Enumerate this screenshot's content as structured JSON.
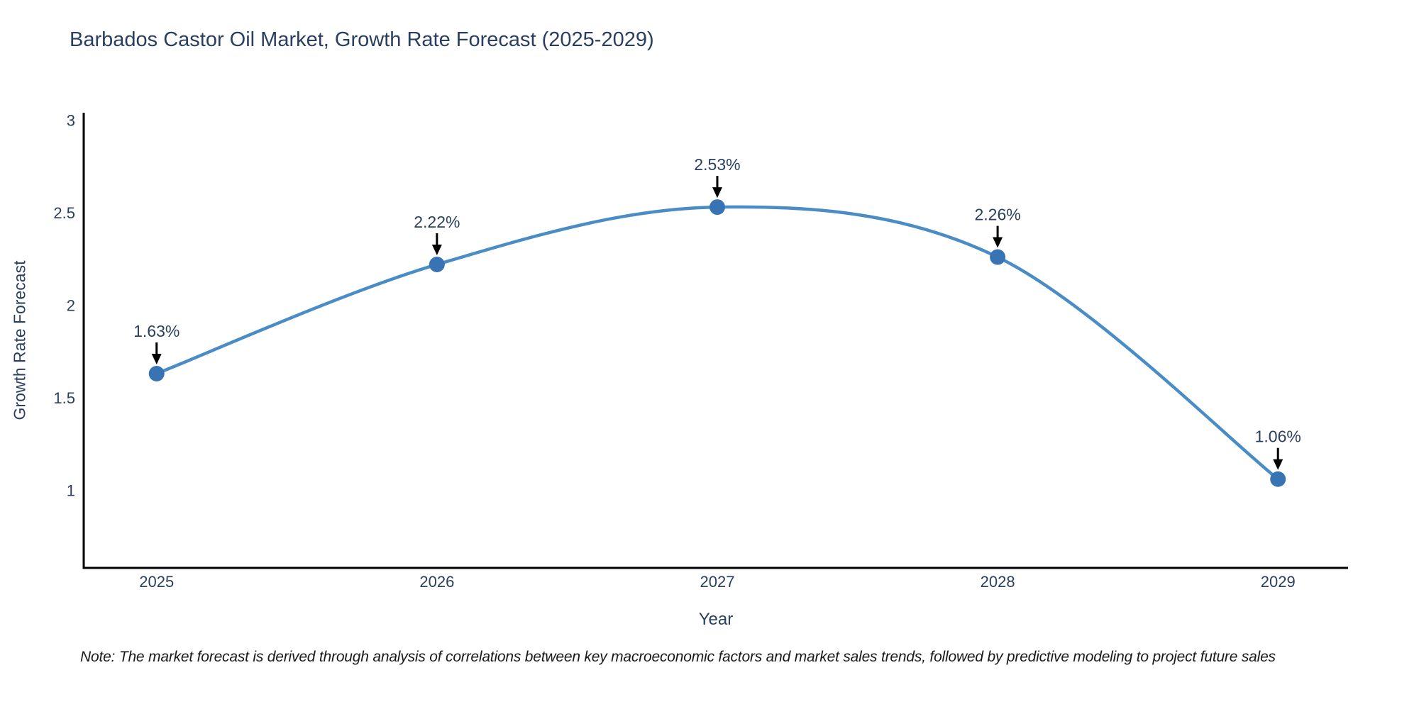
{
  "title": "Barbados Castor Oil Market, Growth Rate Forecast (2025-2029)",
  "note": "Note: The market forecast is derived through analysis of correlations between key macroeconomic factors and market sales trends, followed by predictive modeling to project future sales",
  "chart_data": {
    "type": "line",
    "title": "Barbados Castor Oil Market, Growth Rate Forecast (2025-2029)",
    "xlabel": "Year",
    "ylabel": "Growth Rate Forecast",
    "x": [
      2025,
      2026,
      2027,
      2028,
      2029
    ],
    "series": [
      {
        "name": "Growth Rate Forecast",
        "values": [
          1.63,
          2.22,
          2.53,
          2.26,
          1.06
        ]
      }
    ],
    "point_labels": [
      "1.63%",
      "2.22%",
      "2.53%",
      "2.26%",
      "1.06%"
    ],
    "xticks": [
      2025,
      2026,
      2027,
      2028,
      2029
    ],
    "xtick_labels": [
      "2025",
      "2026",
      "2027",
      "2028",
      "2029"
    ],
    "yticks": [
      1,
      1.5,
      2,
      2.5,
      3
    ],
    "ytick_labels": [
      "1",
      "1.5",
      "2",
      "2.5",
      "3"
    ],
    "xlim": [
      2024.74,
      2029.25
    ],
    "ylim": [
      0.58,
      3.04
    ],
    "grid": false,
    "legend": "none",
    "line_shape": "spline",
    "marker": "circle",
    "annotation_style": "down-arrow",
    "colors": {
      "line": "#4a8cc5",
      "marker": "#3873b4",
      "arrow": "#000000",
      "axis": "#000000",
      "text": "#2a3f5f",
      "note_text": "#1a1a1a",
      "background": "#ffffff"
    }
  }
}
